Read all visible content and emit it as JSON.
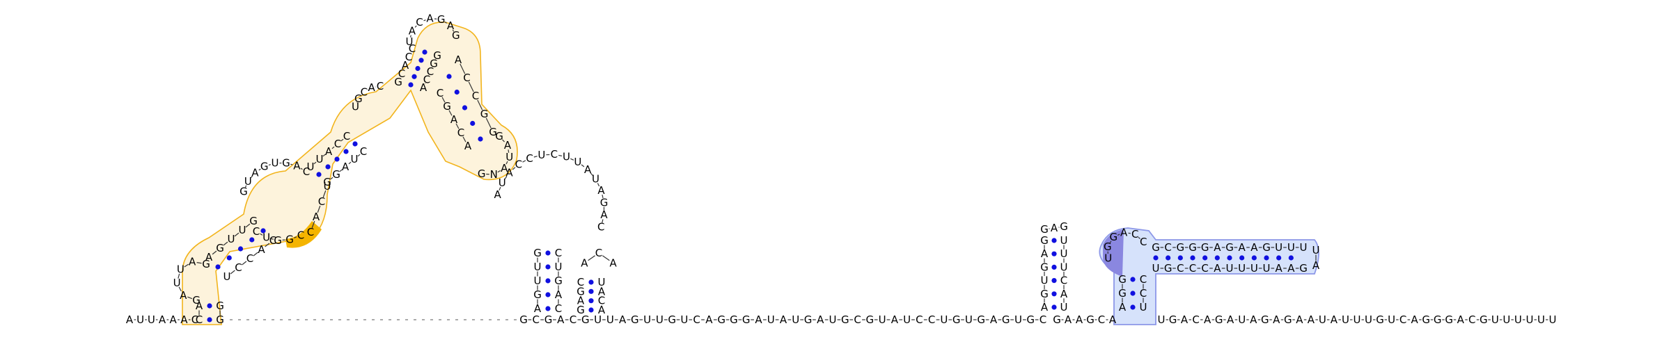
{
  "figure": {
    "type": "rna-secondary-structure",
    "colors": {
      "base_pair": "#1010e0",
      "backbone": "#333333",
      "highlight_orange_outline": "#f2b41c",
      "highlight_orange_fill": "#fdf3dc",
      "highlight_orange_strong": "#f4b400",
      "highlight_blue_outline": "#8c97e8",
      "highlight_blue_fill": "#d6e2fb",
      "highlight_blue_strong": "#8a87e0"
    }
  },
  "strand": {
    "five_prime_tail": [
      "A",
      "U",
      "U",
      "A",
      "A",
      "A",
      "C"
    ],
    "middle_segment": [
      "G",
      "C",
      "G",
      "A",
      "C",
      "G",
      "U",
      "U",
      "A",
      "G",
      "U",
      "U",
      "G",
      "U",
      "C",
      "A",
      "G",
      "G",
      "G",
      "A",
      "U",
      "A",
      "U",
      "G",
      "A",
      "U",
      "G",
      "C",
      "G",
      "U",
      "A",
      "U",
      "C",
      "C",
      "U",
      "G",
      "U",
      "G",
      "A",
      "G",
      "U",
      "G",
      "C"
    ],
    "linker_segment": [
      "G",
      "A",
      "A",
      "G",
      "C",
      "A"
    ],
    "three_prime_tail": [
      "U",
      "G",
      "A",
      "C",
      "A",
      "G",
      "A",
      "U",
      "A",
      "G",
      "A",
      "G",
      "A",
      "A",
      "U",
      "A",
      "U",
      "U",
      "U",
      "G",
      "U",
      "C",
      "A",
      "G",
      "G",
      "G",
      "A",
      "C",
      "G",
      "U",
      "U",
      "U",
      "U",
      "U",
      "U"
    ]
  },
  "domain_a": {
    "label": "orange highlighted multi-helix domain",
    "helix1_left": [
      "C",
      "A",
      "G",
      "G",
      "U"
    ],
    "helix1_right": [
      "G",
      "G",
      "G",
      "U",
      "C"
    ],
    "helix2_left": [
      "A",
      "G",
      "U",
      "U",
      "G"
    ],
    "helix2_right": [
      "U",
      "C",
      "C",
      "A",
      "C"
    ],
    "internal_loop_left": [
      "G",
      "U",
      "A",
      "G",
      "U",
      "G",
      "A",
      "C"
    ],
    "internal_loop_right": [
      "C",
      "G",
      "G",
      "U",
      "C"
    ],
    "helix3_left": [
      "U",
      "U",
      "A",
      "C",
      "C"
    ],
    "helix3_right": [
      "G",
      "G",
      "A",
      "U",
      "C"
    ],
    "helix4_left": [
      "G",
      "C",
      "A",
      "C",
      "C"
    ],
    "helix4_right": [
      "A",
      "C",
      "C",
      "G",
      "G"
    ],
    "apical_loop": [
      "U",
      "A",
      "C",
      "A",
      "G",
      "A",
      "G"
    ],
    "side_helix_left": [
      "A",
      "C",
      "C",
      "G",
      "G"
    ],
    "side_helix_right": [
      "C",
      "G",
      "A",
      "C",
      "A"
    ],
    "side_loop": [
      "G",
      "A",
      "U",
      "A",
      "N",
      "G"
    ]
  },
  "domain_b": {
    "label": "multiloop region",
    "loop_sequence": [
      "A",
      "U",
      "A",
      "C",
      "C",
      "U",
      "C",
      "U",
      "U",
      "A",
      "U",
      "A",
      "G",
      "A",
      "C"
    ],
    "stem1_left": [
      "A",
      "G",
      "U",
      "U",
      "G"
    ],
    "stem1_right": [
      "C",
      "A",
      "G",
      "U",
      "C"
    ],
    "stem2_left": [
      "G",
      "A",
      "G",
      "C"
    ],
    "stem2_right": [
      "A",
      "C",
      "A",
      "U"
    ]
  },
  "hairpin_c": {
    "stem_left": [
      "A",
      "G",
      "U",
      "G",
      "A",
      "G"
    ],
    "stem_right": [
      "U",
      "A",
      "C",
      "U",
      "U",
      "U"
    ],
    "loop": [
      "G",
      "A",
      "G"
    ]
  },
  "hairpin_d": {
    "label": "blue highlighted hairpin",
    "stem_base_left": [
      "A",
      "G",
      "G"
    ],
    "stem_base_right": [
      "U",
      "C",
      "C"
    ],
    "left_top_row": [
      "G",
      "C",
      "G",
      "G",
      "G",
      "A",
      "G",
      "A",
      "A",
      "G",
      "U",
      "U",
      "U"
    ],
    "right_bottom_row": [
      "U",
      "G",
      "C",
      "C",
      "C",
      "A",
      "U",
      "U",
      "U",
      "U",
      "A",
      "A",
      "G"
    ],
    "inner_loop": [
      "U",
      "G",
      "G",
      "A",
      "C",
      "C"
    ],
    "tip": [
      "U",
      "A"
    ]
  }
}
